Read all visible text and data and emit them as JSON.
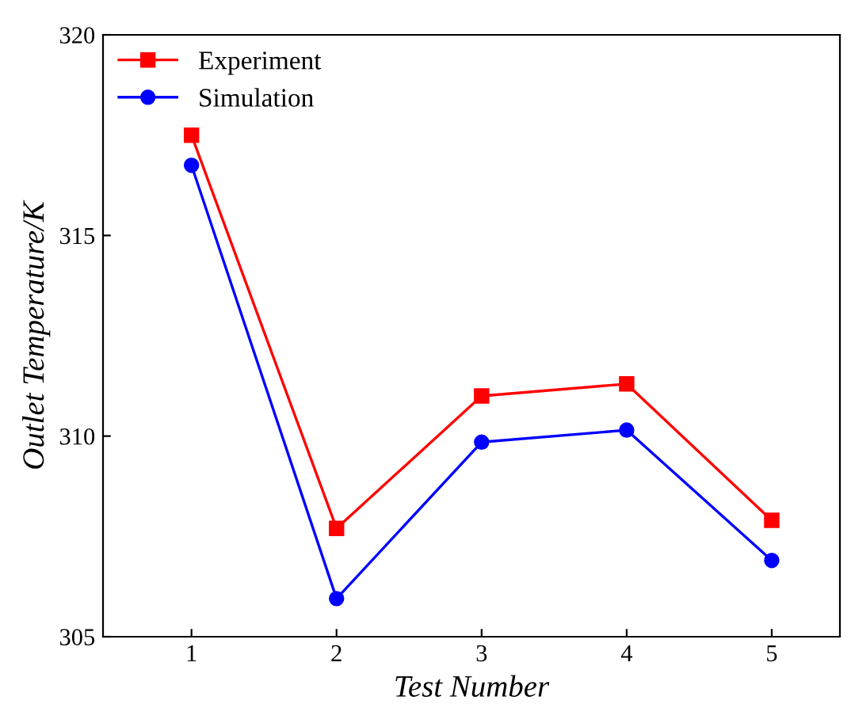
{
  "chart_data": {
    "type": "line",
    "xlabel": "Test Number",
    "ylabel": "Outlet Temperature/K",
    "x": [
      1,
      2,
      3,
      4,
      5
    ],
    "series": [
      {
        "name": "Experiment",
        "color": "#ff0000",
        "marker": "square",
        "values": [
          317.5,
          307.7,
          311.0,
          311.3,
          307.9
        ]
      },
      {
        "name": "Simulation",
        "color": "#0000ff",
        "marker": "circle",
        "values": [
          316.75,
          305.95,
          309.85,
          310.15,
          306.9
        ]
      }
    ],
    "xlim": [
      0.39,
      5.47
    ],
    "xticks": [
      1,
      2,
      3,
      4,
      5
    ],
    "ylim": [
      305,
      320
    ],
    "yticks": [
      305,
      310,
      315,
      320
    ],
    "grid": false,
    "legend": "top left",
    "line_style": "solid"
  }
}
